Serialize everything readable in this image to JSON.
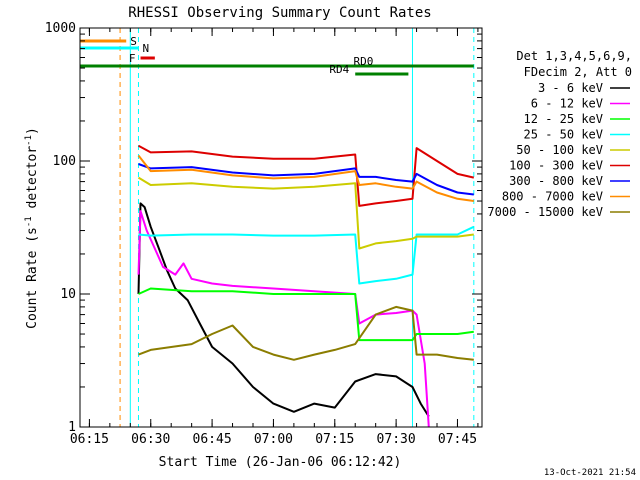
{
  "chart_data": {
    "type": "line",
    "title": "RHESSI Observing Summary Count Rates",
    "xlabel": "Start Time (26-Jan-06 06:12:42)",
    "ylabel_main": "Count Rate (s",
    "ylabel_sup": "-1",
    "ylabel_end": " detector",
    "ylabel_close": ")",
    "yscale": "log",
    "ylim": [
      1,
      1000
    ],
    "xlim": [
      "06:12:42",
      "07:51:00"
    ],
    "xticks": [
      "06:15",
      "06:30",
      "06:45",
      "07:00",
      "07:15",
      "07:30",
      "07:45"
    ],
    "yticks": [
      "1",
      "10",
      "100",
      "1000"
    ],
    "footer": "13-Oct-2021 21:54",
    "legend_header": [
      "Det 1,3,4,5,6,9,",
      "FDecim 2, Att 0"
    ],
    "legend": [
      {
        "label": "3 - 6 keV",
        "color": "#000000"
      },
      {
        "label": "6 - 12 keV",
        "color": "#ff00ff"
      },
      {
        "label": "12 - 25 keV",
        "color": "#00ff00"
      },
      {
        "label": "25 - 50 keV",
        "color": "#00ffff"
      },
      {
        "label": "50 - 100 keV",
        "color": "#cccc00"
      },
      {
        "label": "100 - 300 keV",
        "color": "#dd0000"
      },
      {
        "label": "300 - 800 keV",
        "color": "#0000ff"
      },
      {
        "label": "800 - 7000 keV",
        "color": "#ff8c00"
      },
      {
        "label": "7000 - 15000 keV",
        "color": "#8b7d00"
      }
    ],
    "flags": [
      {
        "label": "S",
        "color": "#ff8c00",
        "start": "06:12:42",
        "end": "06:24:00"
      },
      {
        "label": "N",
        "color": "#00ffff",
        "start": "06:12:42",
        "end": "06:27:00"
      },
      {
        "label": "F",
        "color": "#dd0000",
        "start": "06:27:30",
        "end": "06:31:00"
      },
      {
        "label": "RD0",
        "color": "#008000",
        "start": "06:12:42",
        "end": "07:49:00"
      },
      {
        "label": "RD4",
        "color": "#008000",
        "start": "07:20:00",
        "end": "07:33:00"
      }
    ],
    "markers": [
      {
        "time": "06:12:42",
        "color": "#00ffff",
        "style": "solid"
      },
      {
        "time": "06:22:30",
        "color": "#ff8c00",
        "style": "dashed"
      },
      {
        "time": "06:25:00",
        "color": "#00ffff",
        "style": "solid"
      },
      {
        "time": "06:27:00",
        "color": "#00ffff",
        "style": "dashed"
      },
      {
        "time": "07:34:00",
        "color": "#00ffff",
        "style": "solid"
      },
      {
        "time": "07:49:00",
        "color": "#00ffff",
        "style": "dashed"
      }
    ],
    "series": [
      {
        "name": "3 - 6 keV",
        "color": "#000000",
        "points": [
          [
            "06:27:00",
            10
          ],
          [
            "06:27:30",
            48
          ],
          [
            "06:28:30",
            45
          ],
          [
            "06:30:00",
            32
          ],
          [
            "06:32:00",
            22
          ],
          [
            "06:34:00",
            15
          ],
          [
            "06:36:00",
            11
          ],
          [
            "06:39:00",
            9
          ],
          [
            "06:42:00",
            6
          ],
          [
            "06:45:00",
            4
          ],
          [
            "06:50:00",
            3
          ],
          [
            "06:55:00",
            2
          ],
          [
            "07:00:00",
            1.5
          ],
          [
            "07:05:00",
            1.3
          ],
          [
            "07:10:00",
            1.5
          ],
          [
            "07:15:00",
            1.4
          ],
          [
            "07:20:00",
            2.2
          ],
          [
            "07:25:00",
            2.5
          ],
          [
            "07:30:00",
            2.4
          ],
          [
            "07:34:00",
            2.0
          ],
          [
            "07:36:00",
            1.5
          ],
          [
            "07:38:00",
            1.2
          ]
        ]
      },
      {
        "name": "6 - 12 keV",
        "color": "#ff00ff",
        "points": [
          [
            "06:27:00",
            14
          ],
          [
            "06:27:30",
            42
          ],
          [
            "06:29:00",
            30
          ],
          [
            "06:31:00",
            22
          ],
          [
            "06:33:00",
            16
          ],
          [
            "06:36:00",
            14
          ],
          [
            "06:38:00",
            17
          ],
          [
            "06:40:00",
            13
          ],
          [
            "06:45:00",
            12
          ],
          [
            "06:50:00",
            11.5
          ],
          [
            "07:00:00",
            11
          ],
          [
            "07:10:00",
            10.5
          ],
          [
            "07:20:00",
            10
          ],
          [
            "07:21:00",
            6
          ],
          [
            "07:25:00",
            7
          ],
          [
            "07:30:00",
            7.2
          ],
          [
            "07:34:00",
            7.5
          ],
          [
            "07:35:00",
            7
          ],
          [
            "07:37:00",
            3
          ],
          [
            "07:38:00",
            1.0
          ]
        ]
      },
      {
        "name": "12 - 25 keV",
        "color": "#00ff00",
        "points": [
          [
            "06:27:00",
            10
          ],
          [
            "06:30:00",
            11
          ],
          [
            "06:40:00",
            10.5
          ],
          [
            "06:50:00",
            10.5
          ],
          [
            "07:00:00",
            10
          ],
          [
            "07:10:00",
            10
          ],
          [
            "07:20:00",
            10
          ],
          [
            "07:21:00",
            4.5
          ],
          [
            "07:25:00",
            4.5
          ],
          [
            "07:30:00",
            4.5
          ],
          [
            "07:34:00",
            4.5
          ],
          [
            "07:35:00",
            5
          ],
          [
            "07:40:00",
            5
          ],
          [
            "07:45:00",
            5
          ],
          [
            "07:49:00",
            5.2
          ]
        ]
      },
      {
        "name": "25 - 50 keV",
        "color": "#00ffff",
        "points": [
          [
            "06:27:00",
            28
          ],
          [
            "06:30:00",
            27.5
          ],
          [
            "06:40:00",
            28
          ],
          [
            "06:50:00",
            28
          ],
          [
            "07:00:00",
            27.5
          ],
          [
            "07:10:00",
            27.5
          ],
          [
            "07:20:00",
            28
          ],
          [
            "07:21:00",
            12
          ],
          [
            "07:25:00",
            12.5
          ],
          [
            "07:30:00",
            13
          ],
          [
            "07:34:00",
            14
          ],
          [
            "07:35:00",
            28
          ],
          [
            "07:40:00",
            28
          ],
          [
            "07:45:00",
            28
          ],
          [
            "07:49:00",
            32
          ]
        ]
      },
      {
        "name": "50 - 100 keV",
        "color": "#cccc00",
        "points": [
          [
            "06:27:00",
            75
          ],
          [
            "06:30:00",
            66
          ],
          [
            "06:40:00",
            68
          ],
          [
            "06:50:00",
            64
          ],
          [
            "07:00:00",
            62
          ],
          [
            "07:10:00",
            64
          ],
          [
            "07:20:00",
            68
          ],
          [
            "07:21:00",
            22
          ],
          [
            "07:25:00",
            24
          ],
          [
            "07:30:00",
            25
          ],
          [
            "07:34:00",
            26
          ],
          [
            "07:35:00",
            27
          ],
          [
            "07:40:00",
            27
          ],
          [
            "07:45:00",
            27
          ],
          [
            "07:49:00",
            28
          ]
        ]
      },
      {
        "name": "100 - 300 keV",
        "color": "#dd0000",
        "points": [
          [
            "06:27:00",
            130
          ],
          [
            "06:30:00",
            116
          ],
          [
            "06:40:00",
            118
          ],
          [
            "06:50:00",
            108
          ],
          [
            "07:00:00",
            104
          ],
          [
            "07:10:00",
            104
          ],
          [
            "07:20:00",
            112
          ],
          [
            "07:21:00",
            46
          ],
          [
            "07:25:00",
            48
          ],
          [
            "07:30:00",
            50
          ],
          [
            "07:34:00",
            52
          ],
          [
            "07:35:00",
            125
          ],
          [
            "07:40:00",
            100
          ],
          [
            "07:45:00",
            80
          ],
          [
            "07:49:00",
            75
          ]
        ]
      },
      {
        "name": "300 - 800 keV",
        "color": "#0000ff",
        "points": [
          [
            "06:27:00",
            95
          ],
          [
            "06:30:00",
            88
          ],
          [
            "06:40:00",
            90
          ],
          [
            "06:50:00",
            82
          ],
          [
            "07:00:00",
            78
          ],
          [
            "07:10:00",
            80
          ],
          [
            "07:20:00",
            88
          ],
          [
            "07:21:00",
            76
          ],
          [
            "07:25:00",
            76
          ],
          [
            "07:30:00",
            72
          ],
          [
            "07:34:00",
            70
          ],
          [
            "07:35:00",
            80
          ],
          [
            "07:40:00",
            66
          ],
          [
            "07:45:00",
            58
          ],
          [
            "07:49:00",
            56
          ]
        ]
      },
      {
        "name": "800 - 7000 keV",
        "color": "#ff8c00",
        "points": [
          [
            "06:27:00",
            110
          ],
          [
            "06:30:00",
            84
          ],
          [
            "06:40:00",
            86
          ],
          [
            "06:50:00",
            78
          ],
          [
            "07:00:00",
            74
          ],
          [
            "07:10:00",
            76
          ],
          [
            "07:20:00",
            84
          ],
          [
            "07:21:00",
            66
          ],
          [
            "07:25:00",
            68
          ],
          [
            "07:30:00",
            64
          ],
          [
            "07:34:00",
            62
          ],
          [
            "07:35:00",
            70
          ],
          [
            "07:40:00",
            58
          ],
          [
            "07:45:00",
            52
          ],
          [
            "07:49:00",
            50
          ]
        ]
      },
      {
        "name": "7000 - 15000 keV",
        "color": "#8b7d00",
        "points": [
          [
            "06:27:00",
            3.5
          ],
          [
            "06:30:00",
            3.8
          ],
          [
            "06:40:00",
            4.2
          ],
          [
            "06:45:00",
            5.0
          ],
          [
            "06:50:00",
            5.8
          ],
          [
            "06:55:00",
            4.0
          ],
          [
            "07:00:00",
            3.5
          ],
          [
            "07:05:00",
            3.2
          ],
          [
            "07:10:00",
            3.5
          ],
          [
            "07:15:00",
            3.8
          ],
          [
            "07:20:00",
            4.2
          ],
          [
            "07:25:00",
            7
          ],
          [
            "07:30:00",
            8
          ],
          [
            "07:34:00",
            7.5
          ],
          [
            "07:35:00",
            3.5
          ],
          [
            "07:40:00",
            3.5
          ],
          [
            "07:45:00",
            3.3
          ],
          [
            "07:49:00",
            3.2
          ]
        ]
      }
    ]
  }
}
